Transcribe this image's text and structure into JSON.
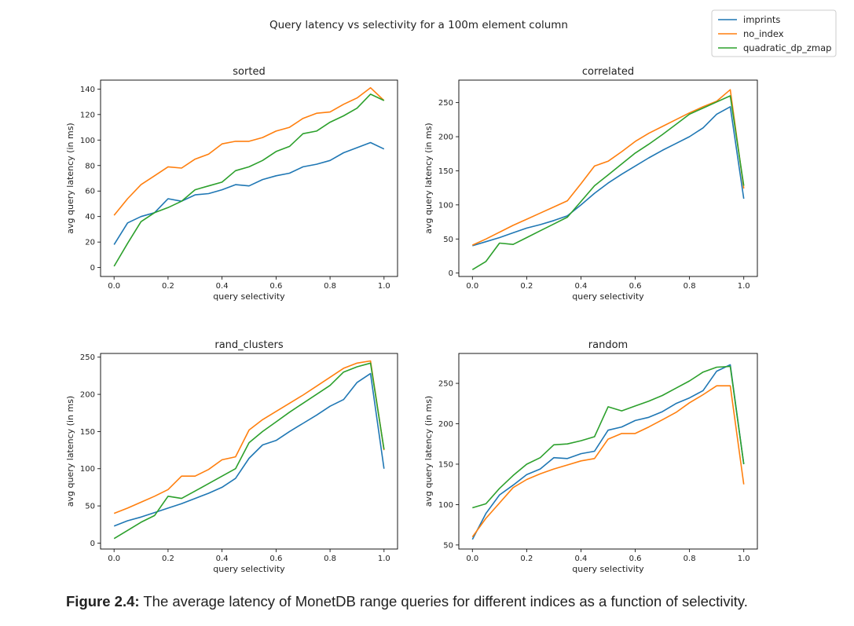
{
  "figure_title": "Query latency vs selectivity for a 100m element column",
  "legend": {
    "placement": "top-right",
    "items": [
      {
        "name": "imprints",
        "color": "#1f77b4"
      },
      {
        "name": "no_index",
        "color": "#ff7f0e"
      },
      {
        "name": "quadratic_dp_zmap",
        "color": "#2ca02c"
      }
    ]
  },
  "caption": {
    "label": "Figure 2.4:",
    "text": " The average latency of MonetDB range queries for different indices as a function of selectivity."
  },
  "chart_data": [
    {
      "type": "line",
      "title": "sorted",
      "xlabel": "query selectivity",
      "ylabel": "avg query latency (in ms)",
      "xlim": [
        -0.05,
        1.05
      ],
      "ylim": [
        -7,
        147
      ],
      "xticks": [
        0.0,
        0.2,
        0.4,
        0.6,
        0.8,
        1.0
      ],
      "xtick_labels": [
        "0.0",
        "0.2",
        "0.4",
        "0.6",
        "0.8",
        "1.0"
      ],
      "yticks": [
        0,
        20,
        40,
        60,
        80,
        100,
        120,
        140
      ],
      "ytick_labels": [
        "0",
        "20",
        "40",
        "60",
        "80",
        "100",
        "120",
        "140"
      ],
      "x": [
        0,
        0.05,
        0.1,
        0.15,
        0.2,
        0.25,
        0.3,
        0.35,
        0.4,
        0.45,
        0.5,
        0.55,
        0.6,
        0.65,
        0.7,
        0.75,
        0.8,
        0.85,
        0.9,
        0.95,
        1.0
      ],
      "series": [
        {
          "name": "imprints",
          "values": [
            18,
            35,
            40,
            43,
            54,
            52,
            57,
            58,
            61,
            65,
            64,
            69,
            72,
            74,
            79,
            81,
            84,
            90,
            94,
            98,
            93
          ]
        },
        {
          "name": "no_index",
          "values": [
            41,
            54,
            65,
            72,
            79,
            78,
            85,
            89,
            97,
            99,
            99,
            102,
            107,
            110,
            117,
            121,
            122,
            128,
            133,
            141,
            131
          ]
        },
        {
          "name": "quadratic_dp_zmap",
          "values": [
            1,
            19,
            36,
            43,
            47,
            52,
            61,
            64,
            67,
            76,
            79,
            84,
            91,
            95,
            105,
            107,
            114,
            119,
            125,
            136,
            131
          ]
        }
      ]
    },
    {
      "type": "line",
      "title": "correlated",
      "xlabel": "query selectivity",
      "ylabel": "avg query latency (in ms)",
      "xlim": [
        -0.05,
        1.05
      ],
      "ylim": [
        -5,
        283
      ],
      "xticks": [
        0.0,
        0.2,
        0.4,
        0.6,
        0.8,
        1.0
      ],
      "xtick_labels": [
        "0.0",
        "0.2",
        "0.4",
        "0.6",
        "0.8",
        "1.0"
      ],
      "yticks": [
        0,
        50,
        100,
        150,
        200,
        250
      ],
      "ytick_labels": [
        "0",
        "50",
        "100",
        "150",
        "200",
        "250"
      ],
      "x": [
        0,
        0.05,
        0.1,
        0.15,
        0.2,
        0.25,
        0.3,
        0.35,
        0.4,
        0.45,
        0.5,
        0.55,
        0.6,
        0.65,
        0.7,
        0.75,
        0.8,
        0.85,
        0.9,
        0.95,
        1.0
      ],
      "series": [
        {
          "name": "imprints",
          "values": [
            40,
            46,
            52,
            59,
            66,
            71,
            77,
            84,
            100,
            117,
            132,
            145,
            157,
            169,
            180,
            190,
            200,
            213,
            233,
            244,
            109
          ]
        },
        {
          "name": "no_index",
          "values": [
            41,
            50,
            60,
            70,
            79,
            88,
            97,
            106,
            131,
            157,
            164,
            178,
            193,
            205,
            215,
            225,
            235,
            244,
            252,
            269,
            124
          ]
        },
        {
          "name": "quadratic_dp_zmap",
          "values": [
            5,
            17,
            44,
            42,
            52,
            62,
            72,
            82,
            105,
            128,
            144,
            160,
            176,
            189,
            203,
            218,
            233,
            242,
            251,
            260,
            128
          ]
        }
      ]
    },
    {
      "type": "line",
      "title": "rand_clusters",
      "xlabel": "query selectivity",
      "ylabel": "avg query latency (in ms)",
      "xlim": [
        -0.05,
        1.05
      ],
      "ylim": [
        -8,
        255
      ],
      "xticks": [
        0.0,
        0.2,
        0.4,
        0.6,
        0.8,
        1.0
      ],
      "xtick_labels": [
        "0.0",
        "0.2",
        "0.4",
        "0.6",
        "0.8",
        "1.0"
      ],
      "yticks": [
        0,
        50,
        100,
        150,
        200,
        250
      ],
      "ytick_labels": [
        "0",
        "50",
        "100",
        "150",
        "200",
        "250"
      ],
      "x": [
        0,
        0.05,
        0.1,
        0.15,
        0.2,
        0.25,
        0.3,
        0.35,
        0.4,
        0.45,
        0.5,
        0.55,
        0.6,
        0.65,
        0.7,
        0.75,
        0.8,
        0.85,
        0.9,
        0.95,
        1.0
      ],
      "series": [
        {
          "name": "imprints",
          "values": [
            23,
            30,
            35,
            41,
            47,
            53,
            60,
            67,
            75,
            87,
            114,
            132,
            138,
            150,
            161,
            172,
            184,
            193,
            216,
            228,
            100
          ]
        },
        {
          "name": "no_index",
          "values": [
            40,
            47,
            55,
            63,
            72,
            90,
            90,
            99,
            112,
            116,
            152,
            166,
            177,
            188,
            199,
            211,
            223,
            235,
            242,
            245,
            125
          ]
        },
        {
          "name": "quadratic_dp_zmap",
          "values": [
            6,
            17,
            28,
            37,
            63,
            60,
            70,
            80,
            90,
            100,
            135,
            150,
            163,
            176,
            188,
            200,
            212,
            230,
            237,
            242,
            126
          ]
        }
      ]
    },
    {
      "type": "line",
      "title": "random",
      "xlabel": "query selectivity",
      "ylabel": "avg query latency (in ms)",
      "xlim": [
        -0.05,
        1.05
      ],
      "ylim": [
        45,
        287
      ],
      "xticks": [
        0.0,
        0.2,
        0.4,
        0.6,
        0.8,
        1.0
      ],
      "xtick_labels": [
        "0.0",
        "0.2",
        "0.4",
        "0.6",
        "0.8",
        "1.0"
      ],
      "yticks": [
        50,
        100,
        150,
        200,
        250
      ],
      "ytick_labels": [
        "50",
        "100",
        "150",
        "200",
        "250"
      ],
      "x": [
        0,
        0.05,
        0.1,
        0.15,
        0.2,
        0.25,
        0.3,
        0.35,
        0.4,
        0.45,
        0.5,
        0.55,
        0.6,
        0.65,
        0.7,
        0.75,
        0.8,
        0.85,
        0.9,
        0.95,
        1.0
      ],
      "series": [
        {
          "name": "imprints",
          "values": [
            57,
            89,
            112,
            124,
            137,
            144,
            158,
            157,
            163,
            166,
            192,
            196,
            204,
            208,
            215,
            225,
            232,
            241,
            265,
            273,
            150
          ]
        },
        {
          "name": "no_index",
          "values": [
            60,
            83,
            102,
            121,
            131,
            138,
            144,
            149,
            154,
            157,
            181,
            188,
            188,
            196,
            205,
            214,
            226,
            236,
            247,
            247,
            125
          ]
        },
        {
          "name": "quadratic_dp_zmap",
          "values": [
            96,
            101,
            120,
            136,
            150,
            158,
            174,
            175,
            179,
            184,
            221,
            216,
            222,
            228,
            235,
            244,
            253,
            264,
            270,
            271,
            150
          ]
        }
      ]
    }
  ]
}
